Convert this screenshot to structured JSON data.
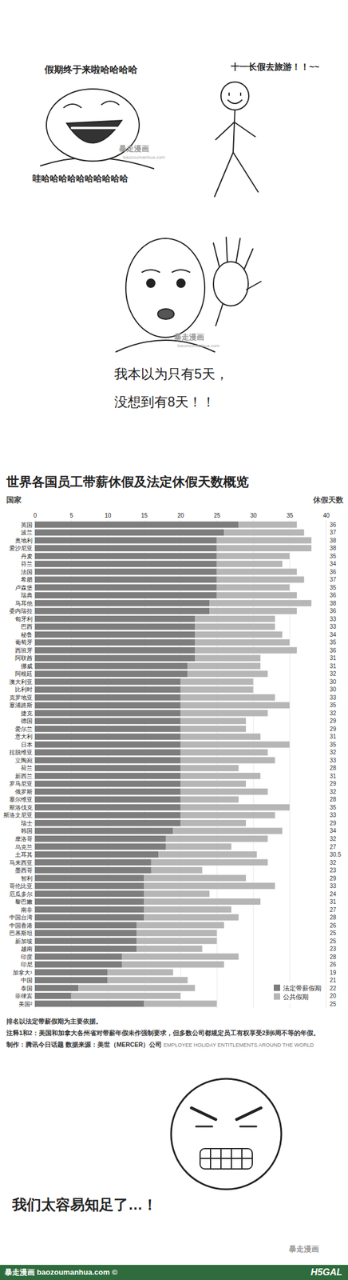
{
  "comic_top": {
    "caption": "假期终于来啦哈哈哈哈",
    "laugh": "哇哈哈哈哈哈哈哈哈哈哈",
    "travel": "十一长假去旅游！！~~"
  },
  "comic_middle": {
    "lines": [
      "我本以为只有5天，",
      "没想到有8天！！"
    ]
  },
  "chart_data": {
    "type": "bar",
    "orientation": "horizontal",
    "stacked": true,
    "title": "世界各国员工带薪休假及法定休假天数概览",
    "ylabel": "国家",
    "totals_label": "休假天数",
    "categories": [
      "英国",
      "波兰",
      "奥地利",
      "爱沙尼亚",
      "丹麦",
      "芬兰",
      "法国",
      "希腊",
      "卢森堡",
      "瑞典",
      "马耳他",
      "委内瑞拉",
      "匈牙利",
      "巴西",
      "秘鲁",
      "葡萄牙",
      "西班牙",
      "阿联酋",
      "挪威",
      "阿根廷",
      "澳大利亚",
      "比利时",
      "克罗地亚",
      "塞浦路斯",
      "捷克",
      "德国",
      "爱尔兰",
      "意大利",
      "日本",
      "拉脱维亚",
      "立陶宛",
      "荷兰",
      "新西兰",
      "罗马尼亚",
      "俄罗斯",
      "塞尔维亚",
      "斯洛伐克",
      "斯洛文尼亚",
      "瑞士",
      "韩国",
      "摩洛哥",
      "乌克兰",
      "土耳其",
      "马来西亚",
      "墨西哥",
      "智利",
      "哥伦比亚",
      "厄瓜多尔",
      "黎巴嫩",
      "南非",
      "中国台湾",
      "中国香港",
      "巴基斯坦",
      "新加坡",
      "越南",
      "印度",
      "印尼",
      "加拿大¹",
      "中国",
      "泰国",
      "菲律宾",
      "美国²"
    ],
    "series": [
      {
        "name": "法定带薪假期",
        "color": "#7d7d7d",
        "values": [
          28,
          26,
          25,
          25,
          25,
          25,
          25,
          25,
          25,
          25,
          24,
          24,
          22,
          22,
          22,
          22,
          22,
          22,
          21,
          21,
          20,
          20,
          20,
          20,
          20,
          20,
          20,
          20,
          20,
          20,
          20,
          20,
          20,
          20,
          20,
          20,
          20,
          20,
          20,
          19,
          18,
          18,
          17,
          16,
          16,
          15,
          15,
          15,
          15,
          15,
          15,
          14,
          14,
          14,
          14,
          12,
          12,
          10,
          10,
          6,
          5,
          15
        ]
      },
      {
        "name": "公共假期",
        "color": "#b6b6b6",
        "values": [
          8,
          11,
          13,
          13,
          10,
          9,
          11,
          12,
          10,
          11,
          14,
          12,
          11,
          11,
          12,
          13,
          14,
          9,
          10,
          11,
          10,
          10,
          13,
          15,
          12,
          9,
          9,
          11,
          15,
          12,
          13,
          8,
          11,
          9,
          12,
          8,
          15,
          13,
          9,
          15,
          14,
          9,
          13.5,
          16,
          7,
          14,
          18,
          9,
          16,
          12,
          13,
          12,
          11,
          11,
          9,
          16,
          14,
          9,
          11,
          16,
          15,
          10
        ]
      }
    ],
    "totals": [
      36,
      37,
      38,
      38,
      35,
      34,
      36,
      37,
      35,
      36,
      38,
      36,
      33,
      33,
      34,
      35,
      36,
      31,
      31,
      32,
      30,
      30,
      33,
      35,
      32,
      29,
      29,
      31,
      35,
      32,
      33,
      28,
      31,
      29,
      32,
      28,
      35,
      33,
      29,
      34,
      32,
      27,
      30.5,
      32,
      23,
      29,
      33,
      24,
      31,
      27,
      28,
      26,
      25,
      25,
      23,
      28,
      26,
      19,
      21,
      22,
      20,
      25
    ],
    "xlim": [
      0,
      40
    ],
    "xticks": [
      0,
      5,
      10,
      15,
      20,
      25,
      30,
      35,
      40
    ],
    "grid": true,
    "legend": "bottom-right",
    "notes": [
      "排名以法定带薪假期为主要依据。",
      "注释1和2：美国和加拿大各州省对带薪年假未作强制要求，但多数公司都规定员工有权享受2到6周不等的年假。"
    ],
    "credit": "制作：腾讯今日话题  数据来源：美世（MERCER）公司",
    "source_en": "EMPLOYEE HOLIDAY ENTITLEMENTS AROUND THE WORLD"
  },
  "comic_bottom": {
    "text": "我们太容易知足了…！"
  },
  "watermark": {
    "name": "暴走漫画",
    "site": "baozoumanhua.com"
  },
  "footer": {
    "text": "暴走漫画 baozoumanhua.com ©",
    "logo": "H5GAL"
  }
}
